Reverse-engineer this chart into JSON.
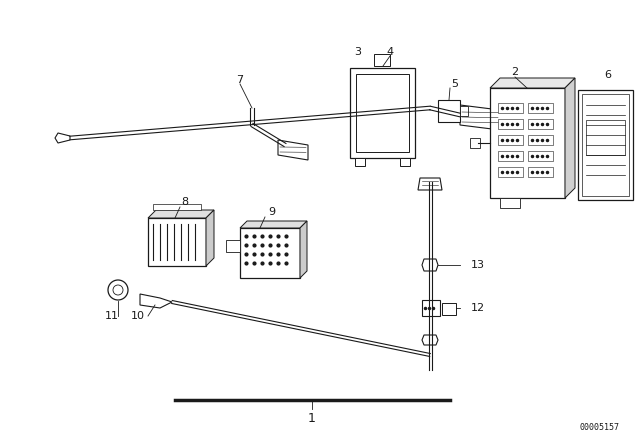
{
  "background_color": "#ffffff",
  "line_color": "#1a1a1a",
  "part_number_label": "00005157",
  "figsize": [
    6.4,
    4.48
  ],
  "dpi": 100
}
